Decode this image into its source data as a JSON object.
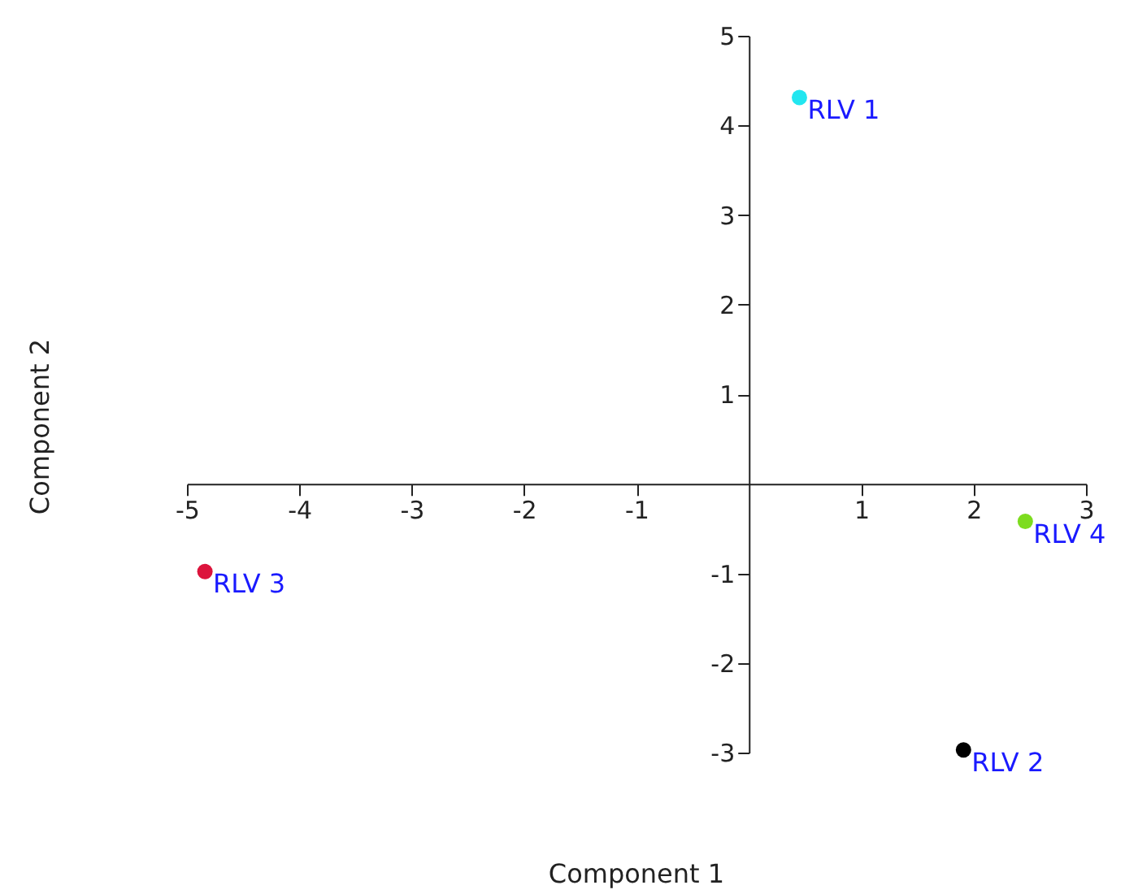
{
  "chart_data": {
    "type": "scatter",
    "xlabel": "Component 1",
    "ylabel": "Component 2",
    "xlim": [
      -5,
      3
    ],
    "ylim": [
      -3,
      5
    ],
    "xticks": [
      -5,
      -4,
      -3,
      -2,
      -1,
      1,
      2,
      3
    ],
    "yticks": [
      -3,
      -2,
      -1,
      1,
      2,
      3,
      4,
      5
    ],
    "grid": false,
    "legend": false,
    "marker": "circle",
    "series": [
      {
        "name": "RLV 1",
        "color": "#22e6f0",
        "x": [
          0.45
        ],
        "values": [
          4.31
        ]
      },
      {
        "name": "RLV 2",
        "color": "#000000",
        "x": [
          1.91
        ],
        "values": [
          -2.97
        ]
      },
      {
        "name": "RLV 3",
        "color": "#dc143c",
        "x": [
          -4.84
        ],
        "values": [
          -0.98
        ]
      },
      {
        "name": "RLV 4",
        "color": "#7ddc1f",
        "x": [
          2.46
        ],
        "values": [
          -0.42
        ]
      }
    ]
  }
}
